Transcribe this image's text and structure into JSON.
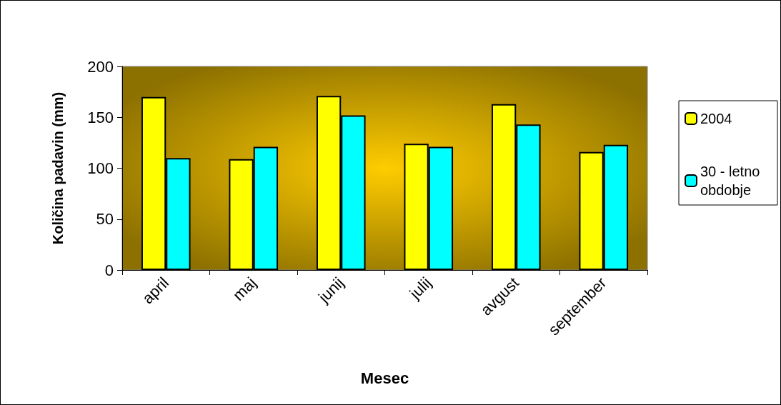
{
  "chart_data": {
    "type": "bar",
    "xlabel": "Mesec",
    "ylabel": "Količina padavin (mm)",
    "categories": [
      "april",
      "maj",
      "junij",
      "julij",
      "avgust",
      "september"
    ],
    "series": [
      {
        "name": "2004",
        "color": "#ffff00",
        "values": [
          170,
          109,
          171,
          124,
          163,
          116
        ]
      },
      {
        "name": "30 - letno obdobje",
        "color": "#00ffff",
        "values": [
          110,
          121,
          152,
          121,
          143,
          123
        ]
      }
    ],
    "ylim": [
      0,
      200
    ],
    "yticks": [
      0,
      50,
      100,
      150,
      200
    ],
    "grid": false,
    "legend": "right"
  }
}
